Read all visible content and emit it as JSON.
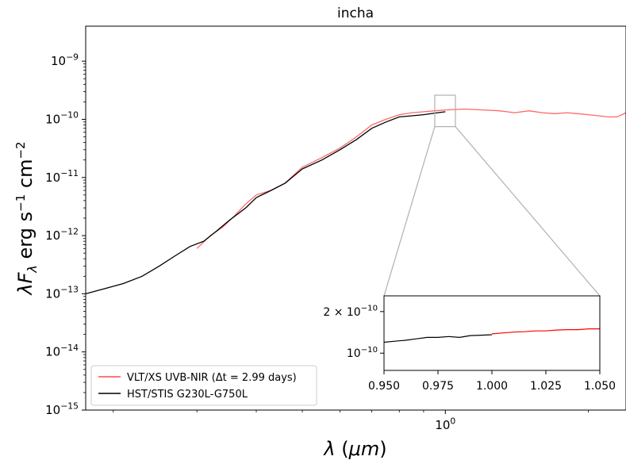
{
  "chart_data": {
    "type": "line",
    "title": "incha",
    "xlabel": "λ (μm)",
    "ylabel": "λF_λ erg s⁻¹ cm⁻²",
    "x_scale": "log",
    "y_scale": "log",
    "xlim": [
      0.175,
      2.4
    ],
    "ylim": [
      1e-15,
      4e-09
    ],
    "x_ticks": [
      {
        "value": 1.0,
        "label": "10^0"
      }
    ],
    "y_ticks": [
      {
        "value": 1e-15,
        "label": "10^-15"
      },
      {
        "value": 1e-14,
        "label": "10^-14"
      },
      {
        "value": 1e-13,
        "label": "10^-13"
      },
      {
        "value": 1e-12,
        "label": "10^-12"
      },
      {
        "value": 1e-11,
        "label": "10^-11"
      },
      {
        "value": 1e-10,
        "label": "10^-10"
      },
      {
        "value": 1e-09,
        "label": "10^-9"
      }
    ],
    "legend_position": "lower-left",
    "colors": {
      "vlt": "#ff4c4c",
      "hst": "#000000",
      "zoom_box": "#b0b0b0"
    },
    "series": [
      {
        "name": "VLT/XS UVB-NIR (Δt = 2.99 days)",
        "color": "#ff4c4c",
        "x": [
          0.3,
          0.32,
          0.34,
          0.36,
          0.38,
          0.4,
          0.43,
          0.46,
          0.5,
          0.55,
          0.6,
          0.65,
          0.7,
          0.75,
          0.8,
          0.85,
          0.9,
          0.95,
          1.0,
          1.1,
          1.2,
          1.3,
          1.4,
          1.5,
          1.6,
          1.7,
          1.8,
          1.9,
          2.0,
          2.1,
          2.2,
          2.3,
          2.4
        ],
        "y": [
          6e-13,
          1e-12,
          1.4e-12,
          2.2e-12,
          3.5e-12,
          5e-12,
          6e-12,
          8e-12,
          1.5e-11,
          2.2e-11,
          3.2e-11,
          5e-11,
          8e-11,
          1e-10,
          1.2e-10,
          1.3e-10,
          1.35e-10,
          1.4e-10,
          1.45e-10,
          1.5e-10,
          1.45e-10,
          1.4e-10,
          1.3e-10,
          1.4e-10,
          1.3e-10,
          1.25e-10,
          1.3e-10,
          1.25e-10,
          1.2e-10,
          1.15e-10,
          1.1e-10,
          1.1e-10,
          1.3e-10
        ]
      },
      {
        "name": "HST/STIS G230L-G750L",
        "color": "#000000",
        "x": [
          0.175,
          0.19,
          0.21,
          0.23,
          0.25,
          0.27,
          0.29,
          0.31,
          0.33,
          0.35,
          0.38,
          0.4,
          0.43,
          0.46,
          0.5,
          0.55,
          0.6,
          0.65,
          0.7,
          0.75,
          0.8,
          0.85,
          0.9,
          0.95,
          1.0
        ],
        "y": [
          1e-13,
          1.2e-13,
          1.5e-13,
          2e-13,
          3e-13,
          4.5e-13,
          6.5e-13,
          8e-13,
          1.2e-12,
          1.8e-12,
          3e-12,
          4.5e-12,
          6e-12,
          8e-12,
          1.4e-11,
          2e-11,
          3e-11,
          4.5e-11,
          7e-11,
          9e-11,
          1.1e-10,
          1.15e-10,
          1.2e-10,
          1.28e-10,
          1.35e-10
        ]
      }
    ],
    "inset": {
      "xlim": [
        0.95,
        1.05
      ],
      "ylim": [
        7.5e-11,
        2.6e-10
      ],
      "y_scale": "log",
      "x_ticks": [
        {
          "value": 0.95,
          "label": "0.950"
        },
        {
          "value": 0.975,
          "label": "0.975"
        },
        {
          "value": 1.0,
          "label": "1.000"
        },
        {
          "value": 1.025,
          "label": "1.025"
        },
        {
          "value": 1.05,
          "label": "1.050"
        }
      ],
      "y_ticks": [
        {
          "value": 1e-10,
          "label": "10^-10"
        },
        {
          "value": 2e-10,
          "label": "2 × 10^-10"
        }
      ],
      "series": [
        {
          "name": "HST/STIS G230L-G750L",
          "color": "#000000",
          "x": [
            0.95,
            0.955,
            0.96,
            0.965,
            0.97,
            0.975,
            0.98,
            0.985,
            0.99,
            0.995,
            1.0
          ],
          "y": [
            1.2e-10,
            1.22e-10,
            1.24e-10,
            1.27e-10,
            1.3e-10,
            1.3e-10,
            1.32e-10,
            1.3e-10,
            1.34e-10,
            1.35e-10,
            1.36e-10
          ]
        },
        {
          "name": "VLT/XS UVB-NIR",
          "color": "#ff0000",
          "x": [
            1.0,
            1.005,
            1.01,
            1.015,
            1.02,
            1.025,
            1.03,
            1.035,
            1.04,
            1.045,
            1.05
          ],
          "y": [
            1.38e-10,
            1.4e-10,
            1.42e-10,
            1.43e-10,
            1.45e-10,
            1.45e-10,
            1.47e-10,
            1.48e-10,
            1.48e-10,
            1.5e-10,
            1.5e-10
          ]
        }
      ]
    }
  }
}
